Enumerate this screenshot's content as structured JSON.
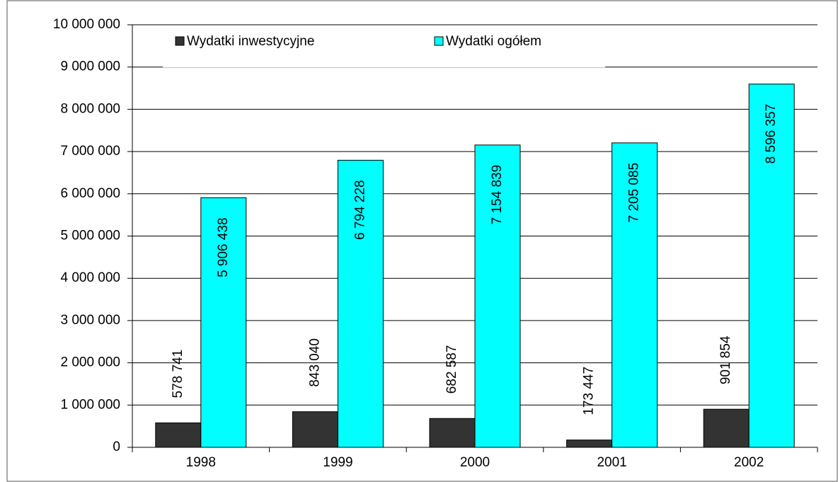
{
  "chart_data": {
    "type": "bar",
    "categories": [
      "1998",
      "1999",
      "2000",
      "2001",
      "2002"
    ],
    "series": [
      {
        "name": "Wydatki inwestycyjne",
        "color": "#333333",
        "values": [
          578741,
          843040,
          682587,
          173447,
          901854
        ],
        "value_labels": [
          "578 741",
          "843 040",
          "682 587",
          "173 447",
          "901 854"
        ]
      },
      {
        "name": "Wydatki ogółem",
        "color": "#00ffff",
        "values": [
          5906438,
          6794228,
          7154839,
          7205085,
          8596357
        ],
        "value_labels": [
          "5 906 438",
          "6 794 228",
          "7 154 839",
          "7 205 085",
          "8 596 357"
        ]
      }
    ],
    "ylim": [
      0,
      10000000
    ],
    "yticks": [
      0,
      {
        "value": 1000000,
        "label": "1 000 000"
      },
      {
        "value": 2000000,
        "label": "2 000 000"
      },
      {
        "value": 3000000,
        "label": "3 000 000"
      },
      {
        "value": 4000000,
        "label": "4 000 000"
      },
      {
        "value": 5000000,
        "label": "5 000 000"
      },
      {
        "value": 6000000,
        "label": "6 000 000"
      },
      {
        "value": 7000000,
        "label": "7 000 000"
      },
      {
        "value": 8000000,
        "label": "8 000 000"
      },
      {
        "value": 9000000,
        "label": "9 000 000"
      },
      {
        "value": 10000000,
        "label": "10 000 000"
      }
    ],
    "grid": true,
    "legend": "top"
  }
}
